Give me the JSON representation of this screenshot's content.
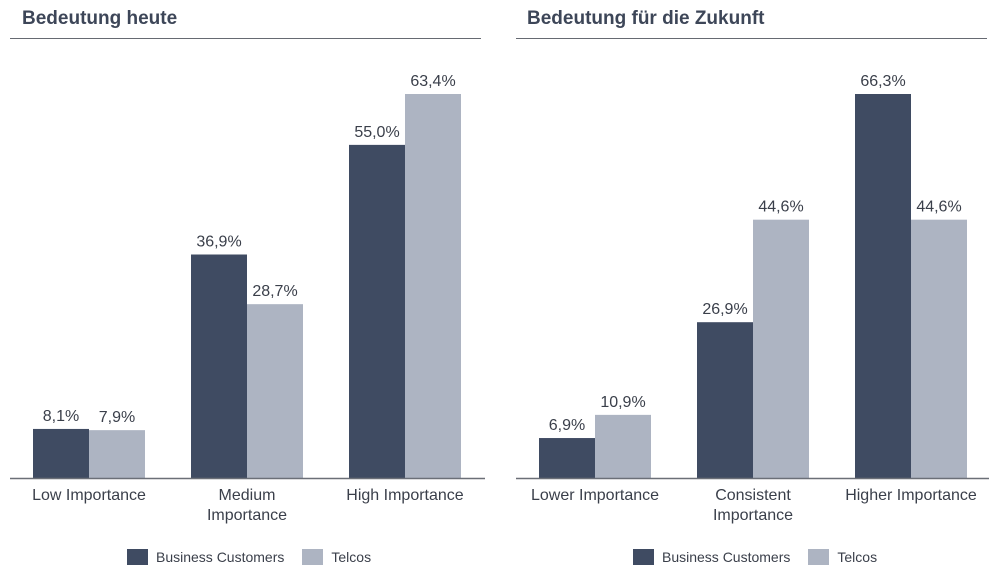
{
  "colors": {
    "business": "#3f4b62",
    "telcos": "#adb4c2",
    "axis": "#6b6f77",
    "text": "#3a3f4a"
  },
  "chart_data": [
    {
      "type": "bar",
      "title": "Bedeutung heute",
      "categories": [
        "Low Importance",
        "Medium\nImportance",
        "High Importance"
      ],
      "series": [
        {
          "name": "Business Customers",
          "values": [
            8.1,
            36.9,
            55.0
          ],
          "labels": [
            "8,1%",
            "36,9%",
            "55,0%"
          ]
        },
        {
          "name": "Telcos",
          "values": [
            7.9,
            28.7,
            63.4
          ],
          "labels": [
            "7,9%",
            "28,7%",
            "63,4%"
          ]
        }
      ],
      "ylim": [
        0,
        63.4
      ],
      "grid": false,
      "legend": "bottom-center"
    },
    {
      "type": "bar",
      "title": "Bedeutung für die Zukunft",
      "categories": [
        "Lower Importance",
        "Consistent\nImportance",
        "Higher Importance"
      ],
      "series": [
        {
          "name": "Business Customers",
          "values": [
            6.9,
            26.9,
            66.3
          ],
          "labels": [
            "6,9%",
            "26,9%",
            "66,3%"
          ]
        },
        {
          "name": "Telcos",
          "values": [
            10.9,
            44.6,
            44.6
          ],
          "labels": [
            "10,9%",
            "44,6%",
            "44,6%"
          ]
        }
      ],
      "ylim": [
        0,
        66.3
      ],
      "grid": false,
      "legend": "bottom-center"
    }
  ]
}
